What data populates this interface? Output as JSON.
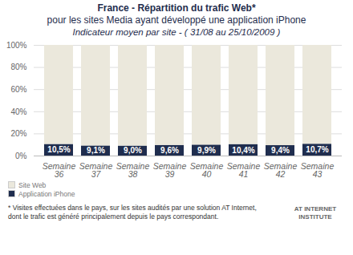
{
  "chart_data": {
    "type": "bar",
    "title": "France - Répartition du trafic Web*",
    "subtitle": "pour les sites Media ayant développé une application iPhone",
    "period": "Indicateur moyen par site - ( 31/08 au 25/10/2009 )",
    "categories": [
      "Semaine 36",
      "Semaine 37",
      "Semaine 38",
      "Semaine 39",
      "Semaine 40",
      "Semaine 41",
      "Semaine 42",
      "Semaine 43"
    ],
    "series": [
      {
        "name": "Application iPhone",
        "color": "#1f2d4e",
        "values": [
          10.5,
          9.1,
          9.0,
          9.6,
          9.9,
          10.4,
          9.4,
          10.7
        ],
        "data_labels": true,
        "value_labels": [
          "10,5%",
          "9,1%",
          "9,0%",
          "9,6%",
          "9,9%",
          "10,4%",
          "9,4%",
          "10,7%"
        ]
      },
      {
        "name": "Site Web",
        "color": "#ebe8dc",
        "values": [
          89.5,
          90.9,
          91.0,
          90.4,
          90.1,
          89.6,
          90.6,
          89.3
        ]
      }
    ],
    "stacked": true,
    "ylim": [
      0,
      100
    ],
    "yticks": [
      {
        "value": 0,
        "label": "0%"
      },
      {
        "value": 20,
        "label": "20%"
      },
      {
        "value": 40,
        "label": "40%"
      },
      {
        "value": 60,
        "label": "60%"
      },
      {
        "value": 80,
        "label": "80%"
      },
      {
        "value": 100,
        "label": "100%"
      }
    ],
    "grid": true,
    "legend": "bottom-left",
    "note": "* Visites effectuées dans le pays, sur les sites audités par une solution AT Internet, dont le trafic est généré principalement depuis le pays correspondant.",
    "source": "AT INTERNET INSTITUTE"
  }
}
